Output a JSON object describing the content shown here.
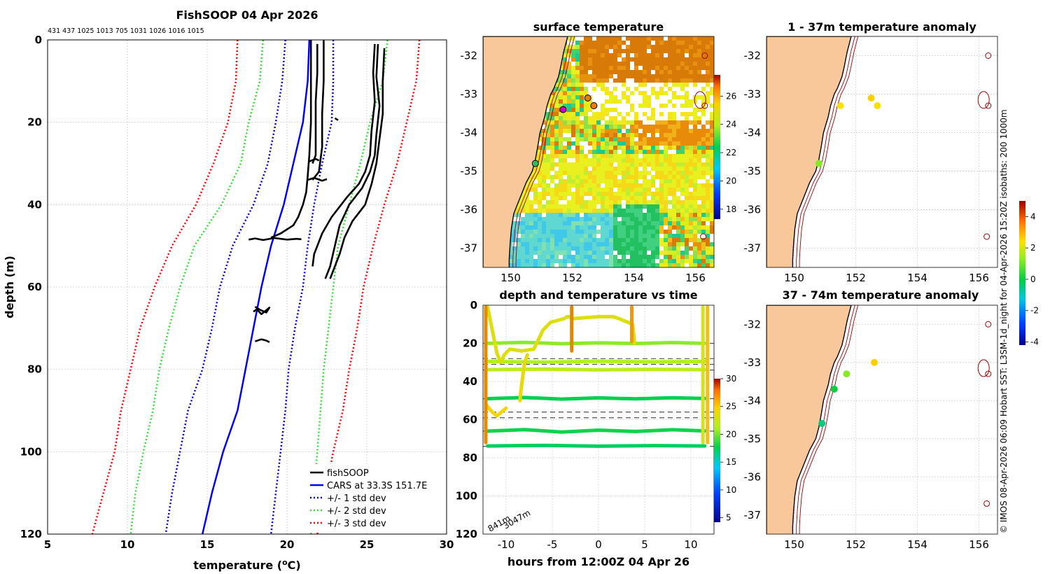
{
  "main_profile": {
    "title": "FishSOOP 04 Apr 2026",
    "deployment_depths": "431 437 1025 1013 705 1031 1026 1016 1015",
    "xlabel_pre": "temperature (",
    "xlabel_sup": "o",
    "xlabel_post": "C)",
    "ylabel": "depth (m)"
  },
  "sst_panel": {
    "title": "surface temperature"
  },
  "anom1_panel": {
    "title": "1 - 37m temperature anomaly"
  },
  "anom2_panel": {
    "title": "37 - 74m temperature anomaly"
  },
  "time_panel": {
    "title": "depth and temperature vs time",
    "xlabel": "hours from 12:00Z 04 Apr 26",
    "bathy_label_1": "841m",
    "bathy_label_2": "3047m"
  },
  "credit": "© IMOS 08-Apr-2026 06:09 Hobart SST: L3SM-1d_night for 04-Apr-2026 15:20Z isobaths: 200  1000m",
  "colors": {
    "fishsoop": "#000000",
    "cars": "#0000ff",
    "std1": "#0000cc",
    "std2": "#33dd33",
    "std3": "#ff0000",
    "land": "#f9c89a",
    "isobath": "#a00000",
    "coast": "#000000"
  },
  "chart_data": [
    {
      "id": "profile",
      "type": "line",
      "title": "FishSOOP 04 Apr 2026",
      "xlabel": "temperature (oC)",
      "ylabel": "depth (m)",
      "xlim": [
        5,
        30
      ],
      "ylim": [
        0,
        120
      ],
      "y_reversed": true,
      "xticks": [
        5,
        10,
        15,
        20,
        25,
        30
      ],
      "yticks": [
        0,
        20,
        40,
        60,
        80,
        100,
        120
      ],
      "grid": true,
      "legend_position": "bottom-right",
      "legend": [
        "fishSOOP",
        "CARS at 33.3S 151.7E",
        "+/- 1 std dev",
        "+/- 2 std dev",
        "+/- 3 std dev"
      ],
      "depth_levels": [
        0,
        10,
        20,
        30,
        40,
        50,
        60,
        70,
        80,
        90,
        100,
        110,
        120
      ],
      "cars_mean": [
        21.4,
        21.3,
        21.0,
        20.4,
        19.8,
        19.0,
        18.4,
        17.9,
        17.4,
        16.9,
        16.0,
        15.3,
        14.7
      ],
      "std1_lo": [
        19.9,
        19.7,
        19.3,
        18.8,
        17.9,
        16.6,
        15.8,
        15.3,
        14.7,
        13.8,
        13.3,
        12.8,
        12.4
      ],
      "std1_hi": [
        22.9,
        22.9,
        22.8,
        22.2,
        21.7,
        21.3,
        21.0,
        20.5,
        20.1,
        19.9,
        19.6,
        19.3,
        19.0
      ],
      "std2_lo": [
        18.5,
        18.3,
        17.6,
        17.1,
        15.9,
        14.2,
        13.3,
        12.6,
        12.0,
        11.6,
        11.0,
        10.5,
        10.2
      ],
      "std2_hi": [
        26.3,
        26.0,
        25.2,
        24.6,
        23.9,
        23.2,
        22.9,
        22.6,
        22.3,
        22.1,
        21.9,
        21.7,
        21.5
      ],
      "std3_lo": [
        16.9,
        16.8,
        16.3,
        15.4,
        14.3,
        12.8,
        11.7,
        10.8,
        10.2,
        9.6,
        9.2,
        8.5,
        7.8
      ],
      "std3_hi": [
        28.3,
        28.1,
        27.5,
        26.9,
        26.1,
        25.4,
        24.8,
        24.4,
        23.9,
        23.5,
        22.9,
        22.4,
        21.9
      ],
      "fishsoop_casts": [
        {
          "t": [
            21.5,
            21.5,
            21.5,
            21.4,
            21.3,
            21.2,
            21.0,
            20.7,
            20.4,
            19.6,
            19.0
          ],
          "d": [
            0,
            10,
            20,
            28,
            33,
            37,
            40,
            43,
            45,
            47,
            48
          ]
        },
        {
          "t": [
            21.9,
            21.9,
            21.8,
            21.8,
            21.8,
            21.6
          ],
          "d": [
            1,
            8,
            15,
            22,
            28,
            30
          ]
        },
        {
          "t": [
            22.3,
            22.3,
            22.2,
            22.2,
            22.0,
            21.6
          ],
          "d": [
            0,
            10,
            18,
            26,
            32,
            34
          ]
        },
        {
          "t": [
            25.5,
            25.4,
            25.5,
            25.3,
            25.2,
            24.9,
            24.5,
            23.8,
            23.4,
            22.8,
            22.2,
            21.7,
            21.6
          ],
          "d": [
            1,
            8,
            15,
            22,
            28,
            32,
            35,
            38,
            40,
            43,
            47,
            52,
            55
          ]
        },
        {
          "t": [
            25.7,
            25.6,
            25.8,
            25.6,
            25.5,
            25.2,
            24.7,
            23.9,
            23.3,
            23.0,
            22.7,
            22.4
          ],
          "d": [
            1,
            9,
            16,
            23,
            28,
            32,
            36,
            40,
            45,
            50,
            55,
            58
          ]
        },
        {
          "t": [
            26.1,
            26.0,
            26.0,
            25.8,
            25.6,
            25.3,
            24.9,
            24.1,
            23.6,
            23.3,
            22.9,
            22.7
          ],
          "d": [
            2,
            10,
            18,
            24,
            30,
            35,
            40,
            44,
            48,
            52,
            56,
            58
          ]
        },
        {
          "t": [
            17.6,
            18.0,
            18.5,
            19.2,
            20.0,
            20.6,
            20.9
          ],
          "d": [
            48.5,
            48.2,
            48.6,
            48.1,
            48.5,
            48.3,
            48.4
          ]
        },
        {
          "t": [
            18.0,
            18.3,
            18.7,
            18.9,
            18.4,
            18.1,
            17.9
          ],
          "d": [
            64.8,
            65.5,
            66.2,
            65.0,
            66.6,
            65.4,
            66.0
          ]
        },
        {
          "t": [
            18.0,
            18.4,
            18.7,
            18.9
          ],
          "d": [
            73.2,
            72.7,
            73.0,
            73.4
          ]
        },
        {
          "t": [
            21.3,
            21.7,
            22.2,
            22.5
          ],
          "d": [
            34.0,
            33.5,
            34.2,
            33.8
          ]
        },
        {
          "t": [
            21.4,
            21.8,
            22.0
          ],
          "d": [
            29.5,
            28.9,
            29.3
          ]
        },
        {
          "t": [
            23.0,
            23.2
          ],
          "d": [
            19.0,
            19.5
          ]
        }
      ]
    },
    {
      "id": "sst",
      "type": "heatmap",
      "title": "surface temperature",
      "xlim": [
        149.1,
        156.6
      ],
      "ylim": [
        -37.5,
        -31.5
      ],
      "xticks": [
        150,
        152,
        154,
        156
      ],
      "yticks": [
        -32,
        -33,
        -34,
        -35,
        -36,
        -37
      ],
      "colorbar_range": [
        17.3,
        27.5
      ],
      "colorbar_ticks": [
        18,
        20,
        22,
        24,
        26
      ],
      "fishing_stations": [
        {
          "lon": 152.5,
          "lat": -33.1,
          "color": "#dd7f00"
        },
        {
          "lon": 152.7,
          "lat": -33.3,
          "color": "#e87f00"
        },
        {
          "lon": 151.7,
          "lat": -33.4,
          "color": "#cc00cc"
        },
        {
          "lon": 150.8,
          "lat": -34.8,
          "color": "#33bb66"
        }
      ]
    },
    {
      "id": "anom_1_37",
      "type": "scatter",
      "title": "1 - 37m temperature anomaly",
      "xlim": [
        149.1,
        156.6
      ],
      "ylim": [
        -37.5,
        -31.5
      ],
      "xticks": [
        150,
        152,
        154,
        156
      ],
      "yticks": [
        -32,
        -33,
        -34,
        -35,
        -36,
        -37
      ],
      "points": [
        {
          "lon": 151.5,
          "lat": -33.3,
          "anom": 2.4
        },
        {
          "lon": 152.5,
          "lat": -33.1,
          "anom": 2.6
        },
        {
          "lon": 152.7,
          "lat": -33.3,
          "anom": 2.3
        },
        {
          "lon": 150.8,
          "lat": -34.8,
          "anom": 1.2
        }
      ]
    },
    {
      "id": "anom_37_74",
      "type": "scatter",
      "title": "37 - 74m temperature anomaly",
      "xlim": [
        149.1,
        156.6
      ],
      "ylim": [
        -37.5,
        -31.5
      ],
      "xticks": [
        150,
        152,
        154,
        156
      ],
      "yticks": [
        -32,
        -33,
        -34,
        -35,
        -36,
        -37
      ],
      "colorbar_range": [
        -4.2,
        5.0
      ],
      "colorbar_ticks": [
        -4,
        -2,
        0,
        2,
        4
      ],
      "points": [
        {
          "lon": 152.6,
          "lat": -33.0,
          "anom": 2.6
        },
        {
          "lon": 151.7,
          "lat": -33.3,
          "anom": 1.2
        },
        {
          "lon": 151.3,
          "lat": -33.7,
          "anom": 0.1
        },
        {
          "lon": 150.9,
          "lat": -34.6,
          "anom": -0.5
        }
      ]
    },
    {
      "id": "depth_time",
      "type": "scatter",
      "title": "depth and temperature vs time",
      "xlabel": "hours from 12:00Z 04 Apr 26",
      "xlim": [
        -12.5,
        12.5
      ],
      "ylim": [
        0,
        120
      ],
      "y_reversed": true,
      "xticks": [
        -10,
        -5,
        0,
        5,
        10
      ],
      "yticks": [
        0,
        20,
        40,
        60,
        80,
        100,
        120
      ],
      "colorbar_range": [
        4.2,
        30
      ],
      "colorbar_ticks": [
        5,
        10,
        15,
        20,
        25,
        30
      ],
      "dashed_depths": [
        20,
        28,
        31,
        34,
        49,
        56,
        59,
        66,
        74
      ],
      "tracks": [
        {
          "temp": 20.3,
          "t": [
            -12,
            -8,
            -4,
            0,
            4,
            8,
            11.5
          ],
          "d": [
            20,
            19.5,
            20.2,
            19.7,
            20.1,
            19.6,
            20
          ]
        },
        {
          "temp": 21.0,
          "t": [
            -12,
            -6,
            0,
            6,
            11.5
          ],
          "d": [
            29.5,
            29.8,
            29.4,
            29.7,
            29.5
          ]
        },
        {
          "temp": 21.6,
          "t": [
            -12,
            -6,
            0,
            6,
            11.5
          ],
          "d": [
            33.8,
            33.5,
            33.9,
            33.6,
            33.8
          ]
        },
        {
          "temp": 17.5,
          "t": [
            -12,
            -8,
            -4,
            0,
            4,
            8,
            11.5
          ],
          "d": [
            49,
            48.4,
            49.2,
            48.6,
            49.1,
            48.5,
            48.9
          ]
        },
        {
          "temp": 17.8,
          "t": [
            -12,
            -8,
            -4,
            0,
            4,
            8,
            11.5
          ],
          "d": [
            66,
            65.2,
            66.5,
            65.5,
            66.2,
            65.3,
            65.9
          ]
        },
        {
          "temp": 17.2,
          "t": [
            -12,
            -6,
            0,
            6,
            11.5
          ],
          "d": [
            73.8,
            73.5,
            73.9,
            73.6,
            73.8
          ]
        },
        {
          "temp": 23.0,
          "t": [
            -12,
            -11,
            -10.6,
            -10.2,
            -9.6,
            -8.3,
            -7.0,
            -6.0,
            -5.2,
            -3.7,
            -3.4,
            -3.2,
            -2.7,
            0.0,
            1.6,
            2.2,
            3.2,
            3.7,
            3.9
          ],
          "d": [
            1,
            25,
            30,
            26,
            23,
            24,
            23,
            13,
            9,
            7,
            6,
            6,
            7,
            6,
            6,
            7,
            9,
            10,
            20
          ]
        },
        {
          "temp": 24.0,
          "t": [
            -12.2,
            -12.2,
            -11.5,
            -11.0,
            -10.0
          ],
          "d": [
            2,
            52,
            56,
            58,
            54
          ]
        },
        {
          "temp": 23.5,
          "t": [
            -8.5,
            -8.4,
            -8.0,
            -7.7
          ],
          "d": [
            50,
            45,
            30,
            26
          ]
        }
      ]
    }
  ]
}
